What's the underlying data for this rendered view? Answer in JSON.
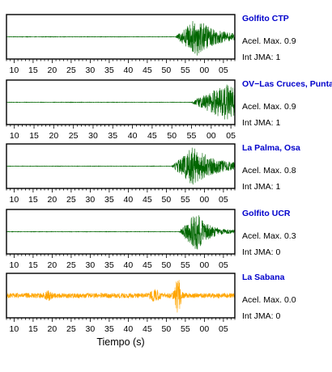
{
  "chart_data": [
    {
      "type": "line",
      "station": "Golfito CTP",
      "acel_label": "Acel. Max.",
      "acel_value": "0.9",
      "int_label": "Int JMA:",
      "int_value": "1",
      "x_ticks": [
        "10",
        "15",
        "20",
        "25",
        "30",
        "35",
        "40",
        "45",
        "50",
        "55",
        "00",
        "05"
      ],
      "x_range": [
        8,
        68
      ],
      "onset": 52.5,
      "peak_at": 58,
      "amplitude": 0.95,
      "decay": 5,
      "color": "#006600"
    },
    {
      "type": "line",
      "station": "OV−Las Cruces, Puntarenas",
      "acel_label": "Acel. Max.",
      "acel_value": "0.9",
      "int_label": "Int JMA:",
      "int_value": "1",
      "x_ticks": [
        "10",
        "15",
        "20",
        "25",
        "30",
        "35",
        "40",
        "45",
        "50",
        "55",
        "00",
        "05"
      ],
      "x_range": [
        8,
        66
      ],
      "onset": 55,
      "peak_at": 64,
      "amplitude": 0.9,
      "decay": 8,
      "color": "#006600"
    },
    {
      "type": "line",
      "station": "La Palma, Osa",
      "acel_label": "Acel. Max.",
      "acel_value": "0.8",
      "int_label": "Int JMA:",
      "int_value": "1",
      "x_ticks": [
        "10",
        "15",
        "20",
        "25",
        "30",
        "35",
        "40",
        "45",
        "50",
        "55",
        "00",
        "05"
      ],
      "x_range": [
        8,
        68
      ],
      "onset": 51.5,
      "peak_at": 57,
      "amplitude": 0.95,
      "decay": 6,
      "color": "#006600"
    },
    {
      "type": "line",
      "station": "Golfito UCR",
      "acel_label": "Acel. Max.",
      "acel_value": "0.3",
      "int_label": "Int JMA:",
      "int_value": "0",
      "x_ticks": [
        "10",
        "15",
        "20",
        "25",
        "30",
        "35",
        "40",
        "45",
        "50",
        "55",
        "00",
        "05"
      ],
      "x_range": [
        8,
        68
      ],
      "onset": 53.5,
      "peak_at": 58,
      "amplitude": 0.95,
      "decay": 3,
      "color": "#006600"
    },
    {
      "type": "line",
      "station": "La Sabana",
      "acel_label": "Acel. Max.",
      "acel_value": "0.0",
      "int_label": "Int JMA:",
      "int_value": "0",
      "x_ticks": [
        "10",
        "15",
        "20",
        "25",
        "30",
        "35",
        "40",
        "45",
        "50",
        "55",
        "00",
        "05"
      ],
      "x_range": [
        8,
        68
      ],
      "noise": true,
      "peak_at": 53,
      "amplitude": 0.95,
      "color": "#ffa500"
    }
  ],
  "xlabel": "Tiempo (s)"
}
